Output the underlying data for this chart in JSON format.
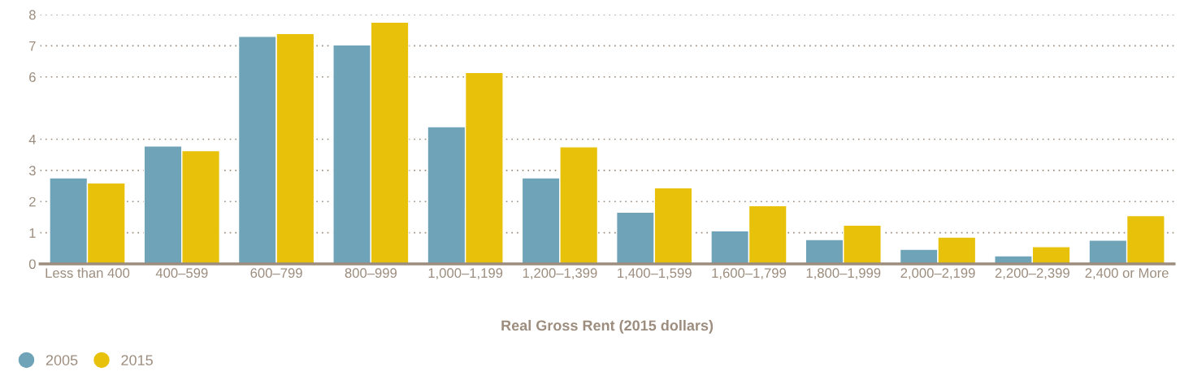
{
  "chart_data": {
    "type": "bar",
    "xlabel": "Real Gross Rent (2015 dollars)",
    "categories": [
      "Less than 400",
      "400–599",
      "600–799",
      "800–999",
      "1,000–1,199",
      "1,200–1,399",
      "1,400–1,599",
      "1,600–1,799",
      "1,800–1,999",
      "2,000–2,199",
      "2,200–2,399",
      "2,400 or More"
    ],
    "series": [
      {
        "name": "2005",
        "color": "#6fa3b8",
        "values": [
          2.76,
          3.78,
          7.3,
          7.03,
          4.4,
          2.76,
          1.66,
          1.06,
          0.78,
          0.47,
          0.26,
          0.76
        ]
      },
      {
        "name": "2015",
        "color": "#e8c10a",
        "values": [
          2.6,
          3.63,
          7.39,
          7.76,
          6.14,
          3.76,
          2.44,
          1.87,
          1.24,
          0.86,
          0.55,
          1.55
        ]
      }
    ],
    "ylim": [
      0,
      8
    ],
    "yticks": [
      0,
      1,
      2,
      3,
      4,
      6,
      7,
      8
    ],
    "grid": "y",
    "legend": "bottom left"
  }
}
